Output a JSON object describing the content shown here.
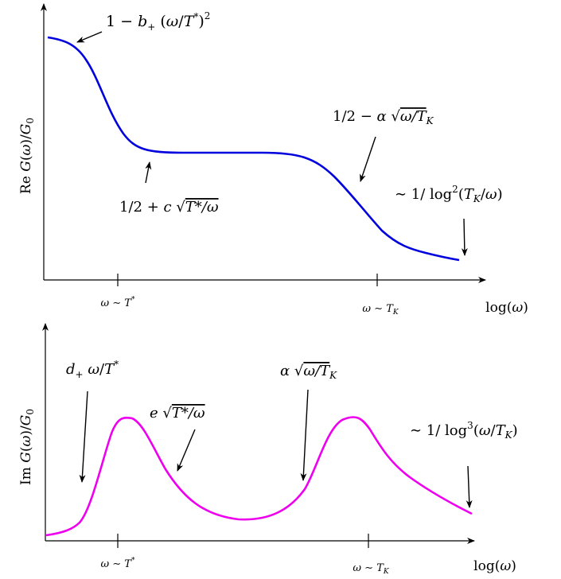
{
  "colors": {
    "real_curve": "#0000dd",
    "imag_curve": "#ee00ee",
    "axes": "#000000"
  },
  "chart_data": [
    {
      "type": "line",
      "ylabel": "Re G(ω)/G₀",
      "xlabel": "log(ω)",
      "x_ticks": [
        "ω ∼ T*",
        "ω ∼ T_K"
      ],
      "annotations": [
        "1 − b₊ (ω/T*)²",
        "1/2 + c √(T*/ω)",
        "1/2 − α √(ω/T_K)",
        "∼ 1/log²(T_K/ω)"
      ]
    },
    {
      "type": "line",
      "ylabel": "Im G(ω)/G₀",
      "xlabel": "log(ω)",
      "x_ticks": [
        "ω ∼ T*",
        "ω ∼ T_K"
      ],
      "annotations": [
        "d₊ ω/T*",
        "e √(T*/ω)",
        "α √(ω/T_K)",
        "∼ 1/log³(ω/T_K)"
      ]
    }
  ]
}
